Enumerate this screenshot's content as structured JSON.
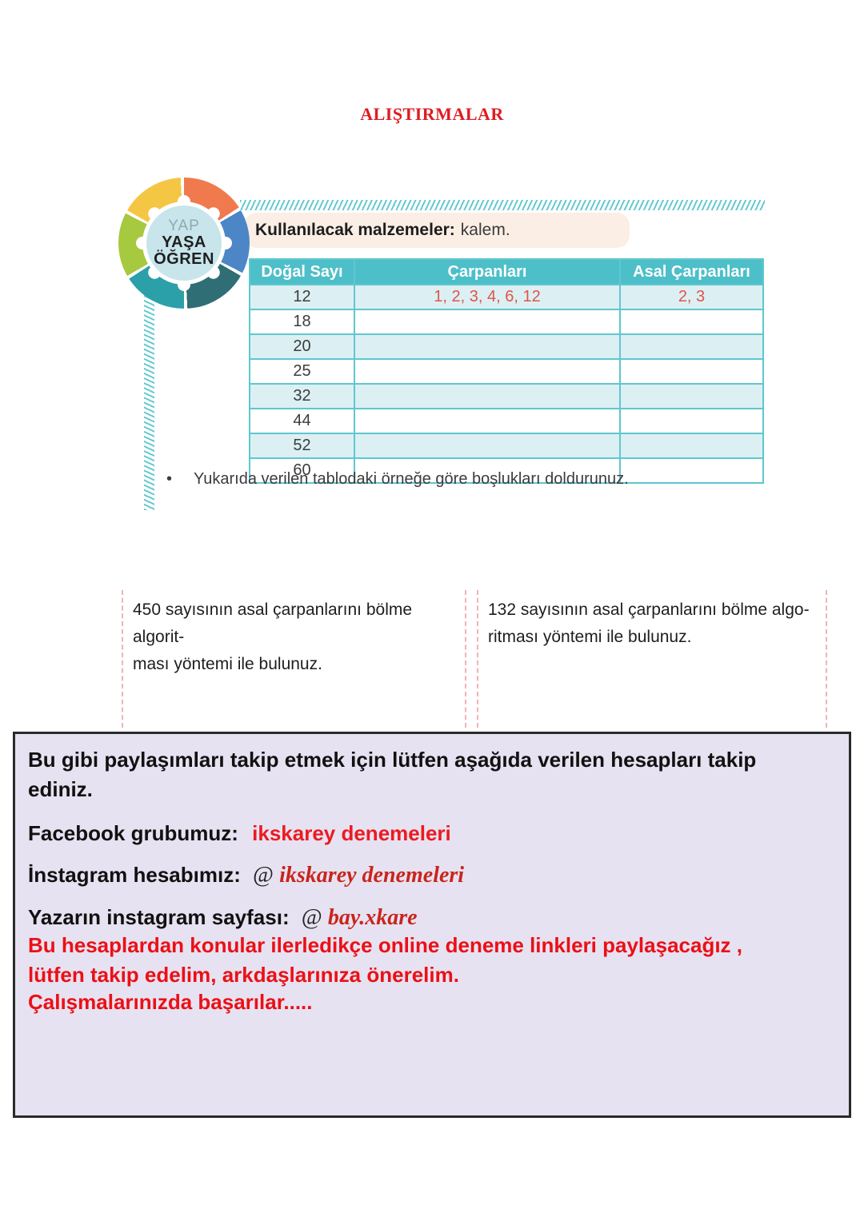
{
  "page": {
    "title": "ALIŞTIRMALAR"
  },
  "logo": {
    "line1": "YAP",
    "line2": "YAŞA",
    "line3": "ÖĞREN"
  },
  "activity": {
    "materials_label": "Kullanılacak malzemeler:",
    "materials_value": "kalem.",
    "table": {
      "headers": [
        "Doğal Sayı",
        "Çarpanları",
        "Asal Çarpanları"
      ],
      "rows": [
        {
          "dogal_sayi": "12",
          "carpanlari": "1, 2, 3, 4, 6, 12",
          "asal_carpanlari": "2, 3"
        },
        {
          "dogal_sayi": "18",
          "carpanlari": "",
          "asal_carpanlari": ""
        },
        {
          "dogal_sayi": "20",
          "carpanlari": "",
          "asal_carpanlari": ""
        },
        {
          "dogal_sayi": "25",
          "carpanlari": "",
          "asal_carpanlari": ""
        },
        {
          "dogal_sayi": "32",
          "carpanlari": "",
          "asal_carpanlari": ""
        },
        {
          "dogal_sayi": "44",
          "carpanlari": "",
          "asal_carpanlari": ""
        },
        {
          "dogal_sayi": "52",
          "carpanlari": "",
          "asal_carpanlari": ""
        },
        {
          "dogal_sayi": "60",
          "carpanlari": "",
          "asal_carpanlari": ""
        }
      ]
    },
    "bullet": "•",
    "instruction": "Yukarıda verilen tablodaki örneğe göre boşlukları doldurunuz."
  },
  "questions": [
    {
      "text": "450 sayısının asal çarpanlarını bölme algorit-\nması yöntemi ile bulunuz."
    },
    {
      "text": "132 sayısının asal çarpanlarını bölme algo-\nritması yöntemi ile bulunuz."
    }
  ],
  "promo": {
    "intro": "Bu gibi paylaşımları takip etmek için lütfen aşağıda verilen hesapları takip\nediniz.",
    "facebook_label": "Facebook grubumuz:",
    "facebook_value": "ikskarey denemeleri",
    "instagram_label": "İnstagram hesabımız:",
    "instagram_at": "@",
    "instagram_value": "ikskarey denemeleri",
    "author_label": "Yazarın instagram sayfası:",
    "author_at": "@",
    "author_value": "bay.xkare",
    "note": "Bu hesaplardan konular ilerledikçe online deneme linkleri paylaşacağız ,\nlütfen takip edelim, arkdaşlarınıza önerelim.",
    "closing": "Çalışmalarınızda başarılar....."
  },
  "colors": {
    "title_red": "#E01B22",
    "table_header_teal": "#4DBFC9",
    "table_grid_teal": "#5FC7CF",
    "table_alt_row": "#DCF0F3",
    "table_filled_red": "#E0534C",
    "materials_bg": "#FBEEE5",
    "hatch_teal": "#66C9D1",
    "question_dash_pink": "#F1B2B8",
    "promo_bg": "#E7E2F1",
    "promo_border": "#2A2A2A",
    "promo_red": "#EB1016",
    "serif_red": "#C8251C"
  }
}
